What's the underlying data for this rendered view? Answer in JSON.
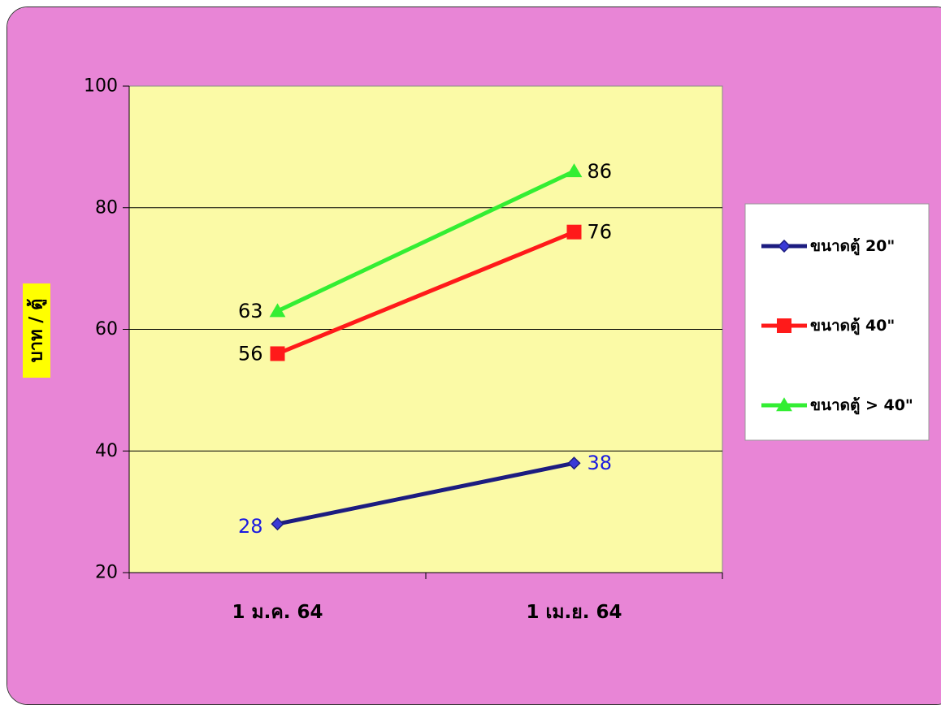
{
  "chart_data": {
    "type": "line",
    "title": "",
    "xlabel": "",
    "ylabel": "บาท / ตู้",
    "categories": [
      "1 ม.ค. 64",
      "1 เม.ย. 64"
    ],
    "ylim": [
      20,
      100
    ],
    "yticks": [
      20,
      40,
      60,
      80,
      100
    ],
    "grid": true,
    "legend_position": "right",
    "series": [
      {
        "name": "ขนาดตู้ 20\"",
        "values": [
          28,
          38
        ],
        "color": "#1c1c80",
        "marker": "diamond",
        "marker_color": "#3a3ad6",
        "label_color": "#1a1ae0"
      },
      {
        "name": "ขนาดตู้ 40\"",
        "values": [
          56,
          76
        ],
        "color": "#ff1a1a",
        "marker": "square",
        "marker_color": "#ff1a1a",
        "label_color": "#000000"
      },
      {
        "name": "ขนาดตู้ > 40\"",
        "values": [
          63,
          86
        ],
        "color": "#33ee33",
        "marker": "triangle",
        "marker_color": "#33ee33",
        "label_color": "#000000"
      }
    ],
    "colors": {
      "background": "#e885d6",
      "plot_area": "#fbfaa6",
      "ylabel_highlight": "#ffff00",
      "legend_background": "#ffffff"
    }
  }
}
